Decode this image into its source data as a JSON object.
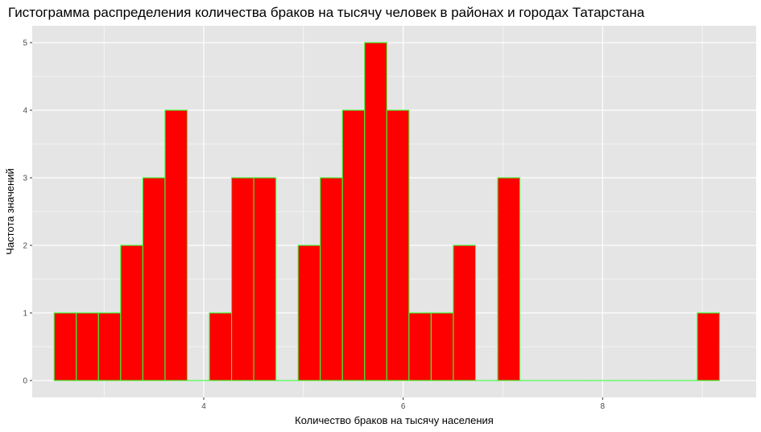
{
  "chart_data": {
    "type": "bar",
    "title": "Гистограмма распределения количества браков на тысячу человек в районах и городах Татарстана",
    "xlabel": "Количество браков на тысячу населения",
    "ylabel": "Частота значений",
    "xlim": [
      2.28,
      9.54
    ],
    "ylim": [
      -0.25,
      5.25
    ],
    "x_ticks": [
      4,
      6,
      8
    ],
    "y_ticks": [
      0,
      1,
      2,
      3,
      4,
      5
    ],
    "bin_start": 2.5,
    "bin_width": 0.2224,
    "counts": [
      1,
      1,
      1,
      2,
      3,
      4,
      0,
      1,
      3,
      3,
      0,
      2,
      3,
      4,
      5,
      4,
      1,
      1,
      2,
      0,
      3,
      0,
      0,
      0,
      0,
      0,
      0,
      0,
      0,
      1
    ],
    "grid": true,
    "colors": {
      "fill": "#ff0000",
      "outline": "#33ff33",
      "panel": "#e5e5e5",
      "grid": "#ffffff"
    }
  }
}
